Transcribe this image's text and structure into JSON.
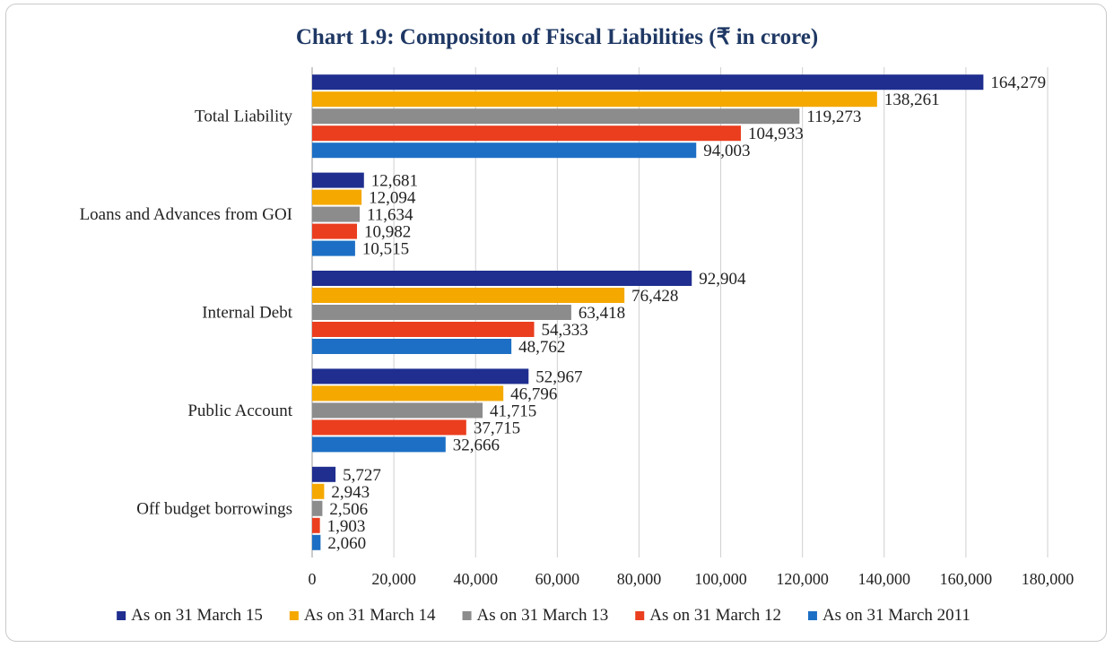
{
  "chart_data": {
    "type": "bar",
    "orientation": "horizontal",
    "title": "Chart 1.9: Compositon of Fiscal Liabilities (₹ in crore)",
    "categories": [
      "Total Liability",
      "Loans and Advances from GOI",
      "Internal Debt",
      "Public Account",
      "Off budget borrowings"
    ],
    "series": [
      {
        "name": "As on 31 March 15",
        "color": "#1f2e8f",
        "values": [
          164279,
          12681,
          92904,
          52967,
          5727
        ],
        "labels": [
          "164,279",
          "12,681",
          "92,904",
          "52,967",
          "5,727"
        ]
      },
      {
        "name": "As on 31 March 14",
        "color": "#f5a800",
        "values": [
          138261,
          12094,
          76428,
          46796,
          2943
        ],
        "labels": [
          "138,261",
          "12,094",
          "76,428",
          "46,796",
          "2,943"
        ]
      },
      {
        "name": "As on 31 March 13",
        "color": "#8c8c8c",
        "values": [
          119273,
          11634,
          63418,
          41715,
          2506
        ],
        "labels": [
          "119,273",
          "11,634",
          "63,418",
          "41,715",
          "2,506"
        ]
      },
      {
        "name": "As on 31 March 12",
        "color": "#ea3e1f",
        "values": [
          104933,
          10982,
          54333,
          37715,
          1903
        ],
        "labels": [
          "104,933",
          "10,982",
          "54,333",
          "37,715",
          "1,903"
        ]
      },
      {
        "name": "As on 31 March 2011",
        "color": "#1c6fc4",
        "values": [
          94003,
          10515,
          48762,
          32666,
          2060
        ],
        "labels": [
          "94,003",
          "10,515",
          "48,762",
          "32,666",
          "2,060"
        ]
      }
    ],
    "xlim": [
      0,
      180000
    ],
    "xticks": [
      0,
      20000,
      40000,
      60000,
      80000,
      100000,
      120000,
      140000,
      160000,
      180000
    ],
    "xtick_labels": [
      "0",
      "20,000",
      "40,000",
      "60,000",
      "80,000",
      "100,000",
      "120,000",
      "140,000",
      "160,000",
      "180,000"
    ],
    "grid": "vertical",
    "legend_position": "bottom"
  }
}
